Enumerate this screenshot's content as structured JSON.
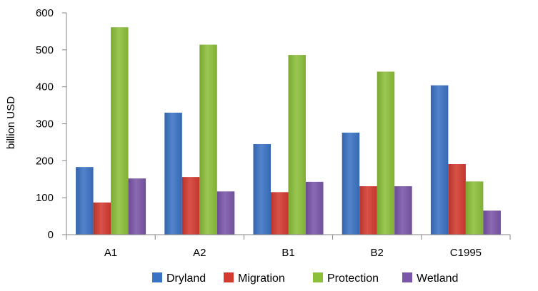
{
  "chart_data": {
    "type": "bar",
    "title": "",
    "xlabel": "",
    "ylabel": "billion USD",
    "ylim": [
      0,
      600
    ],
    "yticks": [
      0,
      100,
      200,
      300,
      400,
      500,
      600
    ],
    "grid": false,
    "legend_position": "bottom",
    "categories": [
      "A1",
      "A2",
      "B1",
      "B2",
      "C1995"
    ],
    "series": [
      {
        "name": "Dryland",
        "color": "#3a72c4",
        "values": [
          183,
          330,
          245,
          276,
          404
        ]
      },
      {
        "name": "Migration",
        "color": "#d33a30",
        "values": [
          87,
          156,
          115,
          131,
          191
        ]
      },
      {
        "name": "Protection",
        "color": "#8cbf3a",
        "values": [
          561,
          514,
          486,
          441,
          144
        ]
      },
      {
        "name": "Wetland",
        "color": "#7a56a8",
        "values": [
          152,
          117,
          143,
          131,
          65
        ]
      }
    ]
  }
}
